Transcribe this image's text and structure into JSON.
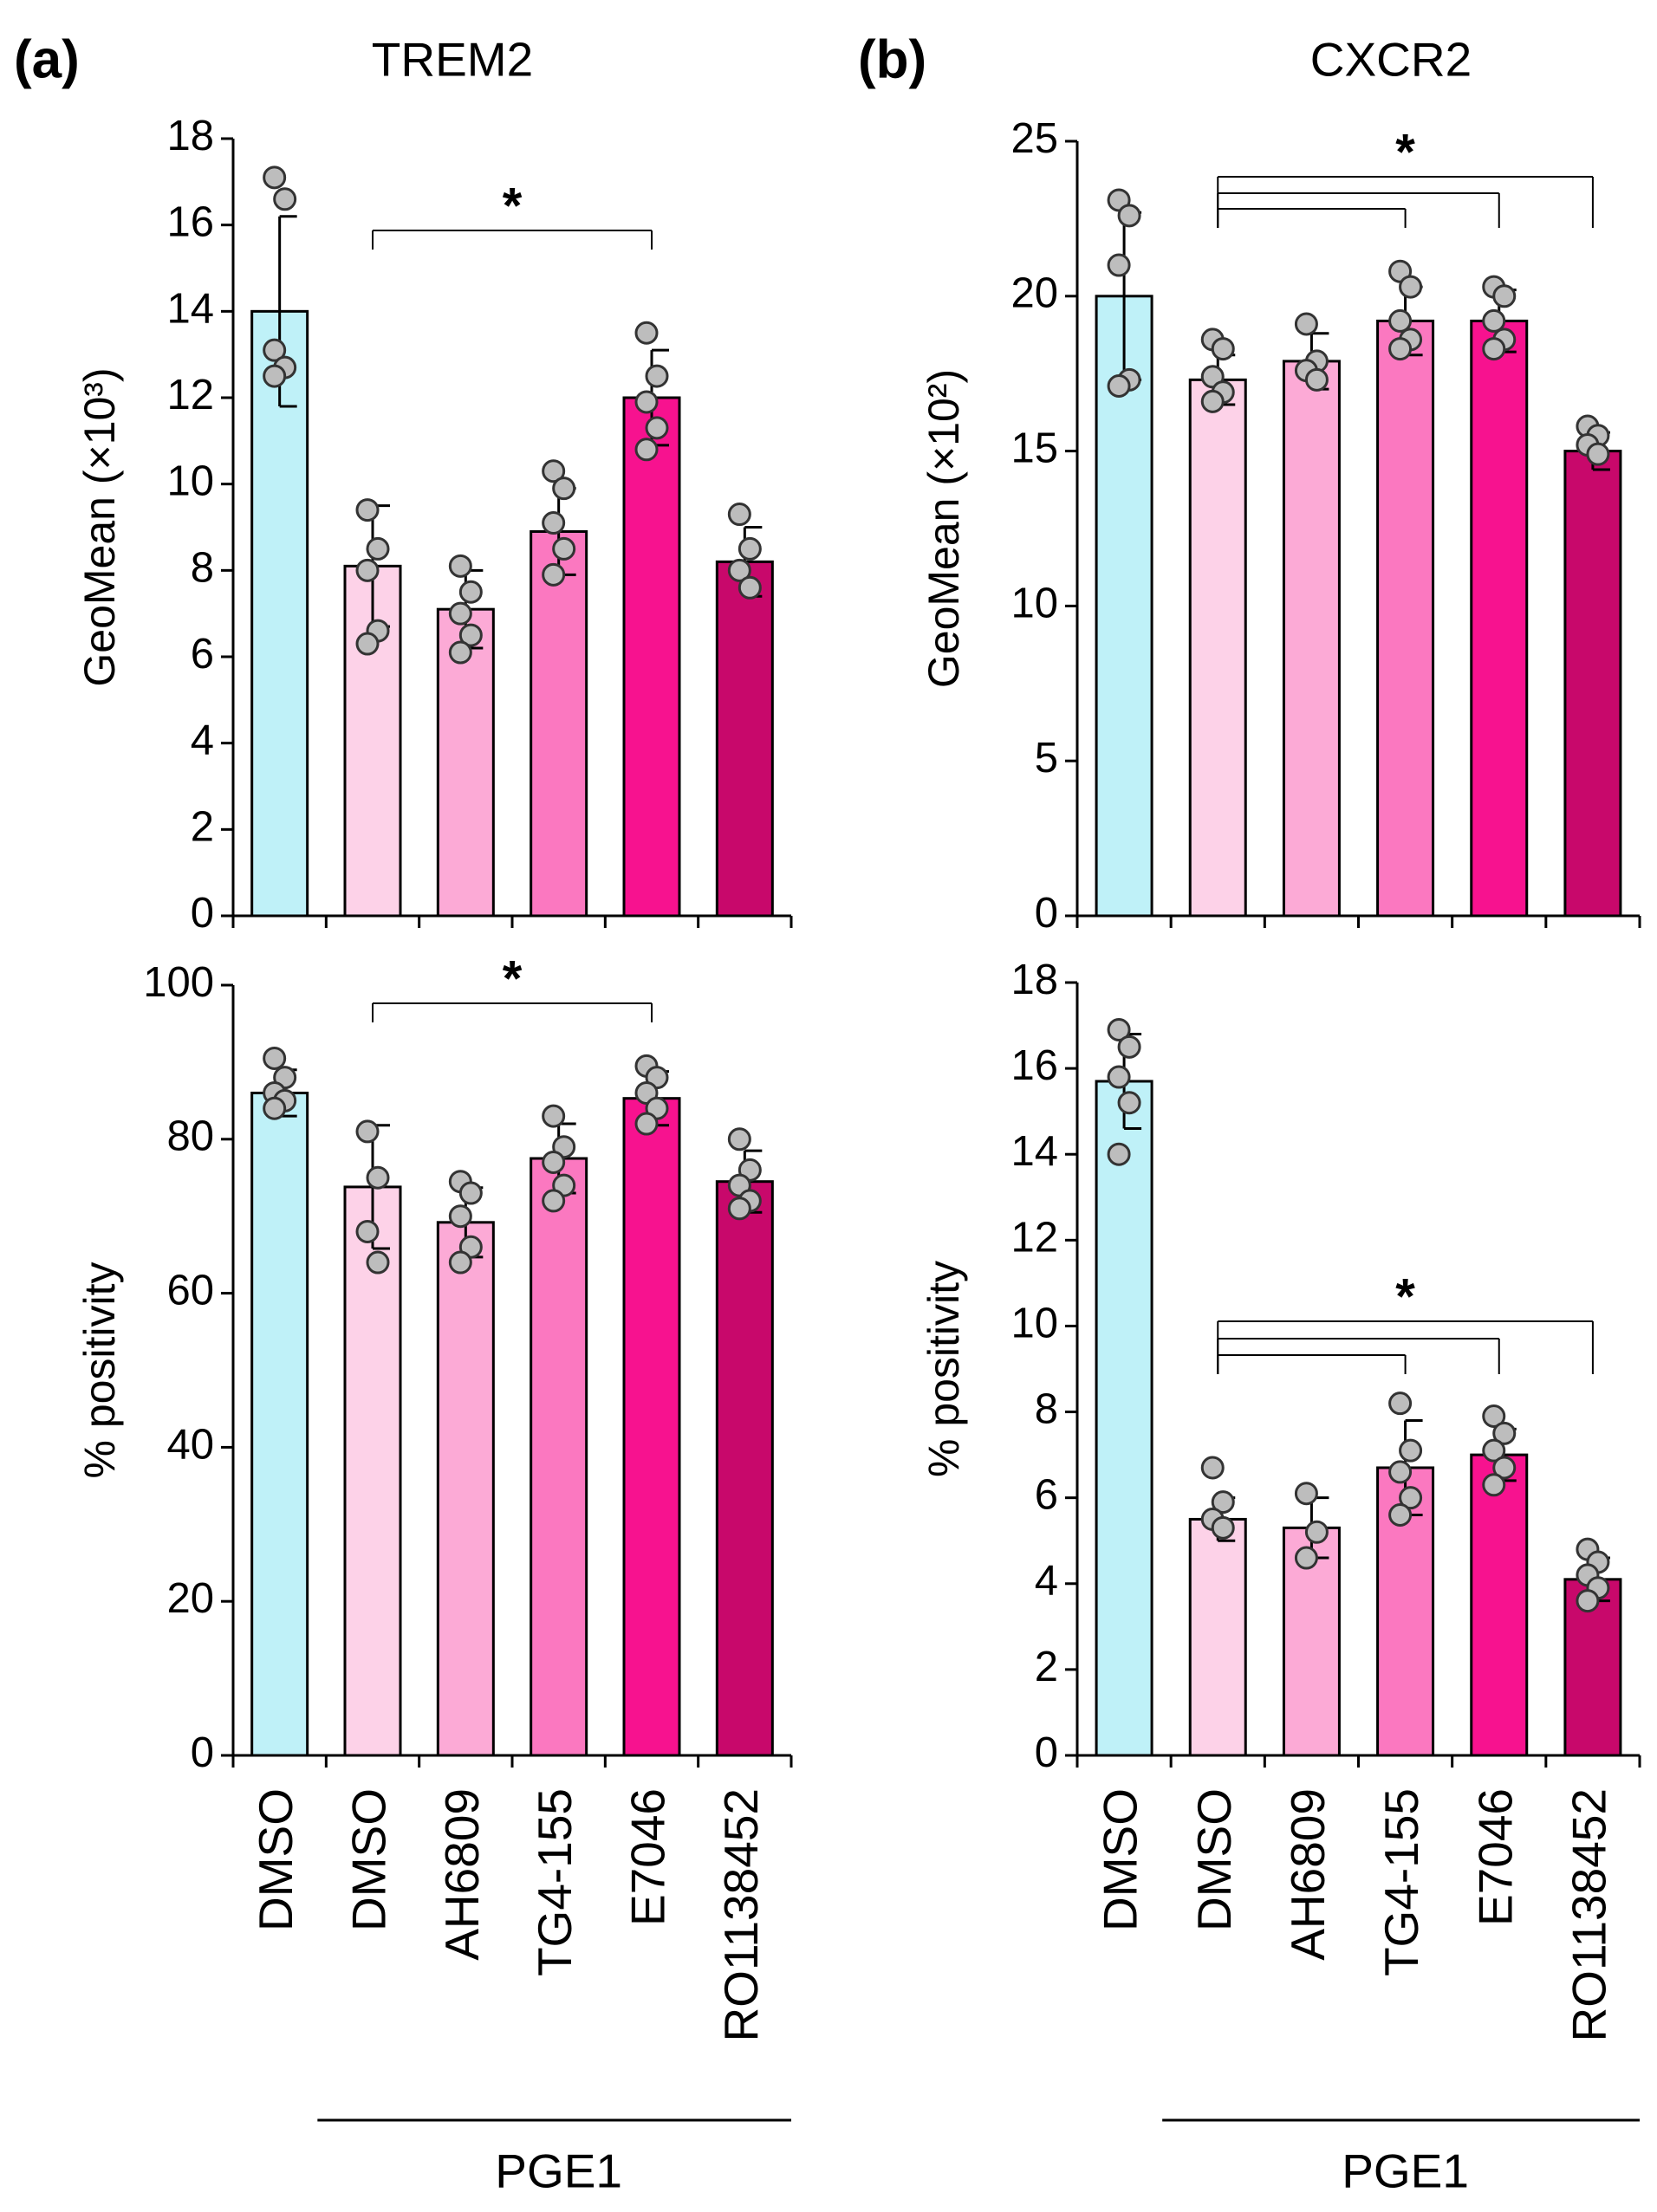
{
  "chart_data": [
    {
      "type": "bar",
      "panel": "(a)",
      "title": "TREM2",
      "ylabel": "GeoMean (×10³)",
      "values": [
        14.0,
        8.1,
        7.1,
        8.9,
        12.0,
        8.2
      ],
      "errors": [
        2.2,
        1.4,
        0.9,
        1.0,
        1.1,
        0.8
      ],
      "points": [
        [
          17.1,
          16.6,
          13.1,
          12.7,
          12.5
        ],
        [
          9.4,
          8.5,
          8.0,
          6.6,
          6.3
        ],
        [
          8.1,
          7.5,
          7.0,
          6.5,
          6.1
        ],
        [
          10.3,
          9.9,
          9.1,
          8.5,
          7.9
        ],
        [
          13.5,
          12.5,
          11.9,
          11.3,
          10.8
        ],
        [
          9.3,
          8.5,
          8.0,
          7.6
        ]
      ],
      "colors": [
        "#bff1f8",
        "#fdd2e8",
        "#fcaad6",
        "#fb78c0",
        "#f7128f",
        "#c8086b"
      ],
      "ylim": [
        0,
        18
      ],
      "yticks": [
        0,
        2,
        4,
        6,
        8,
        10,
        12,
        14,
        16,
        18
      ],
      "significance": {
        "label": "*",
        "pairs": [
          [
            1,
            4
          ]
        ]
      }
    },
    {
      "type": "bar",
      "panel": "(b)",
      "title": "CXCR2",
      "ylabel": "GeoMean (×10²)",
      "values": [
        20.0,
        17.3,
        17.9,
        19.2,
        19.2,
        15.0
      ],
      "errors": [
        2.7,
        0.8,
        0.9,
        1.1,
        1.0,
        0.6
      ],
      "points": [
        [
          23.1,
          22.6,
          21.0,
          17.3,
          17.1
        ],
        [
          18.6,
          18.3,
          17.4,
          16.9,
          16.6
        ],
        [
          19.1,
          17.9,
          17.6,
          17.3
        ],
        [
          20.8,
          20.3,
          19.2,
          18.6,
          18.3
        ],
        [
          20.3,
          20.0,
          19.2,
          18.6,
          18.3
        ],
        [
          15.8,
          15.5,
          15.2,
          14.9
        ]
      ],
      "colors": [
        "#bff1f8",
        "#fdd2e8",
        "#fcaad6",
        "#fb78c0",
        "#f7128f",
        "#c8086b"
      ],
      "ylim": [
        0,
        25
      ],
      "yticks": [
        0,
        5,
        10,
        15,
        20,
        25
      ],
      "significance": {
        "label": "*",
        "pairs": [
          [
            1,
            3
          ],
          [
            1,
            4
          ],
          [
            1,
            5
          ]
        ]
      }
    },
    {
      "type": "bar",
      "ylabel": "% positivity",
      "categories": [
        "DMSO",
        "DMSO",
        "AH6809",
        "TG4-155",
        "E7046",
        "RO1138452"
      ],
      "group": "PGE1",
      "values": [
        86.0,
        73.8,
        69.2,
        77.5,
        85.3,
        74.5
      ],
      "errors": [
        3.0,
        8.0,
        4.5,
        4.5,
        3.5,
        4.0
      ],
      "points": [
        [
          90.5,
          88.0,
          86.0,
          85.0,
          84.0
        ],
        [
          81.0,
          75.0,
          68.0,
          64.0
        ],
        [
          74.5,
          73.0,
          70.0,
          66.0,
          64.0
        ],
        [
          83.0,
          79.0,
          77.0,
          74.0,
          72.0
        ],
        [
          89.5,
          88.0,
          86.0,
          84.0,
          82.0
        ],
        [
          80.0,
          76.0,
          74.0,
          72.0,
          71.0
        ]
      ],
      "colors": [
        "#bff1f8",
        "#fdd2e8",
        "#fcaad6",
        "#fb78c0",
        "#f7128f",
        "#c8086b"
      ],
      "ylim": [
        0,
        100
      ],
      "yticks": [
        0,
        20,
        40,
        60,
        80,
        100
      ],
      "significance": {
        "label": "*",
        "pairs": [
          [
            1,
            4
          ]
        ]
      }
    },
    {
      "type": "bar",
      "ylabel": "% positivity",
      "categories": [
        "DMSO",
        "DMSO",
        "AH6809",
        "TG4-155",
        "E7046",
        "RO1138452"
      ],
      "group": "PGE1",
      "values": [
        15.7,
        5.5,
        5.3,
        6.7,
        7.0,
        4.1
      ],
      "errors": [
        1.1,
        0.5,
        0.7,
        1.1,
        0.6,
        0.5
      ],
      "points": [
        [
          16.9,
          16.5,
          15.8,
          15.2,
          14.0
        ],
        [
          6.7,
          5.9,
          5.5,
          5.3
        ],
        [
          6.1,
          5.2,
          4.6
        ],
        [
          8.2,
          7.1,
          6.6,
          6.0,
          5.6
        ],
        [
          7.9,
          7.5,
          7.1,
          6.7,
          6.3
        ],
        [
          4.8,
          4.5,
          4.2,
          3.9,
          3.6
        ]
      ],
      "colors": [
        "#bff1f8",
        "#fdd2e8",
        "#fcaad6",
        "#fb78c0",
        "#f7128f",
        "#c8086b"
      ],
      "ylim": [
        0,
        18
      ],
      "yticks": [
        0,
        2,
        4,
        6,
        8,
        10,
        12,
        14,
        16,
        18
      ],
      "significance": {
        "label": "*",
        "pairs": [
          [
            1,
            3
          ],
          [
            1,
            4
          ],
          [
            1,
            5
          ]
        ]
      }
    }
  ]
}
